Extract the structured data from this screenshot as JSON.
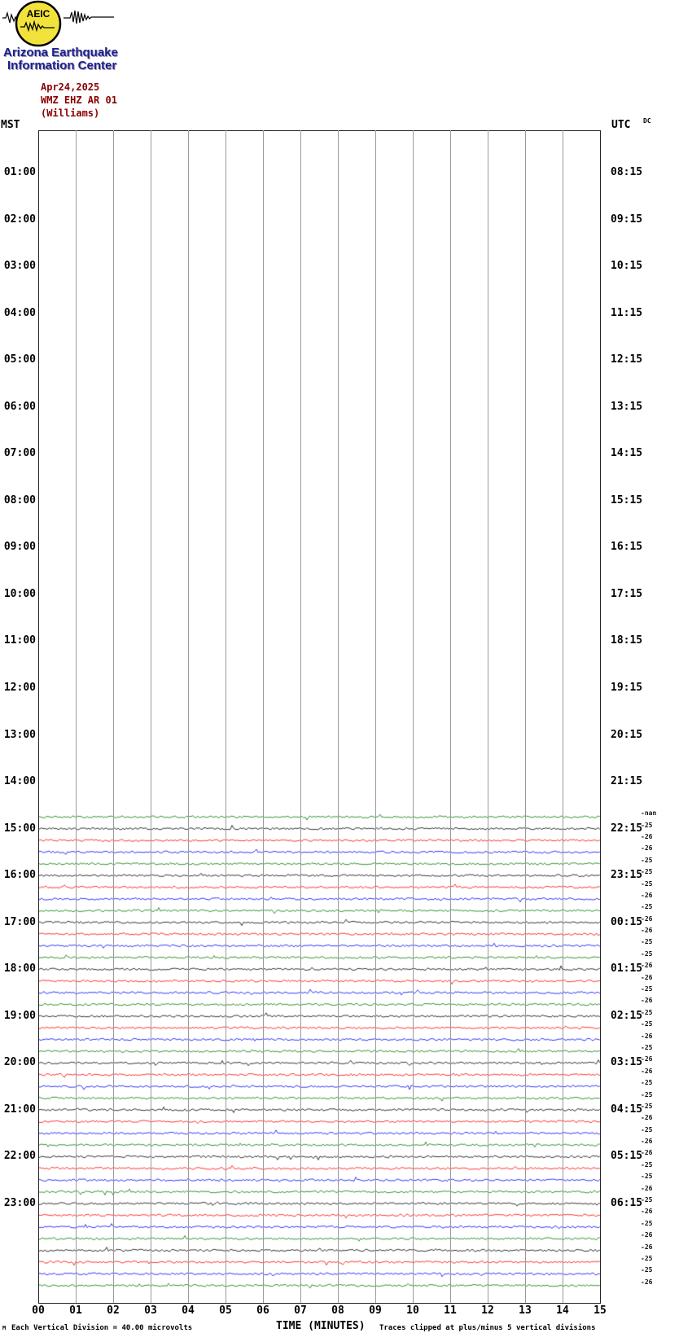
{
  "header": {
    "logo_text": "AEIC",
    "org_line1": "Arizona Earthquake",
    "org_line2": "Information Center",
    "date": "Apr24,2025",
    "station": "WMZ EHZ AR 01",
    "location": "(Williams)"
  },
  "axes": {
    "left_label": "MST",
    "right_label": "UTC",
    "dc_label": "DC",
    "x_title": "TIME (MINUTES)",
    "x_ticks": [
      "00",
      "01",
      "02",
      "03",
      "04",
      "05",
      "06",
      "07",
      "08",
      "09",
      "10",
      "11",
      "12",
      "13",
      "14",
      "15"
    ],
    "hours": [
      {
        "mst": "01:00",
        "utc": "08:15"
      },
      {
        "mst": "02:00",
        "utc": "09:15"
      },
      {
        "mst": "03:00",
        "utc": "10:15"
      },
      {
        "mst": "04:00",
        "utc": "11:15"
      },
      {
        "mst": "05:00",
        "utc": "12:15"
      },
      {
        "mst": "06:00",
        "utc": "13:15"
      },
      {
        "mst": "07:00",
        "utc": "14:15"
      },
      {
        "mst": "08:00",
        "utc": "15:15"
      },
      {
        "mst": "09:00",
        "utc": "16:15"
      },
      {
        "mst": "10:00",
        "utc": "17:15"
      },
      {
        "mst": "11:00",
        "utc": "18:15"
      },
      {
        "mst": "12:00",
        "utc": "19:15"
      },
      {
        "mst": "13:00",
        "utc": "20:15"
      },
      {
        "mst": "14:00",
        "utc": "21:15"
      },
      {
        "mst": "15:00",
        "utc": "22:15"
      },
      {
        "mst": "16:00",
        "utc": "23:15"
      },
      {
        "mst": "17:00",
        "utc": "00:15"
      },
      {
        "mst": "18:00",
        "utc": "01:15"
      },
      {
        "mst": "19:00",
        "utc": "02:15"
      },
      {
        "mst": "20:00",
        "utc": "03:15"
      },
      {
        "mst": "21:00",
        "utc": "04:15"
      },
      {
        "mst": "22:00",
        "utc": "05:15"
      },
      {
        "mst": "23:00",
        "utc": "06:15"
      }
    ]
  },
  "footer": {
    "scale_marker": "M",
    "scale_note": "Each Vertical Division =   40.00 microvolts",
    "clip_note": "Traces clipped at plus/minus 5 vertical divisions"
  },
  "chart_data": {
    "type": "line",
    "title": "Helicorder seismogram, station WMZ EHZ AR 01 (Williams), Apr 24 2025",
    "xlabel": "TIME (MINUTES)",
    "x_range": [
      0,
      15
    ],
    "grid": "vertical-minute-lines",
    "vertical_division_microvolts": 40.0,
    "clip_divisions": 5,
    "note": "No data recorded before 14:45 MST; from 14:45 MST onward each 15-minute segment is a flat noise trace of ~plus/minus 1 division amplitude with no visible seismic events.",
    "colors": {
      "black": "#000000",
      "red": "#ff0000",
      "blue": "#0000ff",
      "green": "#007a00"
    },
    "traces": [
      {
        "time": "14:45",
        "color": "green",
        "dc": "-nan"
      },
      {
        "time": "15:00",
        "color": "black",
        "dc": "-25"
      },
      {
        "time": "15:15",
        "color": "red",
        "dc": "-26"
      },
      {
        "time": "15:30",
        "color": "blue",
        "dc": "-26"
      },
      {
        "time": "15:45",
        "color": "green",
        "dc": "-25"
      },
      {
        "time": "16:00",
        "color": "black",
        "dc": "-25"
      },
      {
        "time": "16:15",
        "color": "red",
        "dc": "-25"
      },
      {
        "time": "16:30",
        "color": "blue",
        "dc": "-26"
      },
      {
        "time": "16:45",
        "color": "green",
        "dc": "-25"
      },
      {
        "time": "17:00",
        "color": "black",
        "dc": "-26"
      },
      {
        "time": "17:15",
        "color": "red",
        "dc": "-26"
      },
      {
        "time": "17:30",
        "color": "blue",
        "dc": "-25"
      },
      {
        "time": "17:45",
        "color": "green",
        "dc": "-25"
      },
      {
        "time": "18:00",
        "color": "black",
        "dc": "-26"
      },
      {
        "time": "18:15",
        "color": "red",
        "dc": "-26"
      },
      {
        "time": "18:30",
        "color": "blue",
        "dc": "-25"
      },
      {
        "time": "18:45",
        "color": "green",
        "dc": "-26"
      },
      {
        "time": "19:00",
        "color": "black",
        "dc": "-25"
      },
      {
        "time": "19:15",
        "color": "red",
        "dc": "-25"
      },
      {
        "time": "19:30",
        "color": "blue",
        "dc": "-26"
      },
      {
        "time": "19:45",
        "color": "green",
        "dc": "-25"
      },
      {
        "time": "20:00",
        "color": "black",
        "dc": "-26"
      },
      {
        "time": "20:15",
        "color": "red",
        "dc": "-26"
      },
      {
        "time": "20:30",
        "color": "blue",
        "dc": "-25"
      },
      {
        "time": "20:45",
        "color": "green",
        "dc": "-25"
      },
      {
        "time": "21:00",
        "color": "black",
        "dc": "-25"
      },
      {
        "time": "21:15",
        "color": "red",
        "dc": "-26"
      },
      {
        "time": "21:30",
        "color": "blue",
        "dc": "-25"
      },
      {
        "time": "21:45",
        "color": "green",
        "dc": "-26"
      },
      {
        "time": "22:00",
        "color": "black",
        "dc": "-26"
      },
      {
        "time": "22:15",
        "color": "red",
        "dc": "-25"
      },
      {
        "time": "22:30",
        "color": "blue",
        "dc": "-25"
      },
      {
        "time": "22:45",
        "color": "green",
        "dc": "-26"
      },
      {
        "time": "23:00",
        "color": "black",
        "dc": "-25"
      },
      {
        "time": "23:15",
        "color": "red",
        "dc": "-26"
      },
      {
        "time": "23:30",
        "color": "blue",
        "dc": "-25"
      },
      {
        "time": "23:45",
        "color": "green",
        "dc": "-26"
      },
      {
        "time": "00:00",
        "color": "black",
        "dc": "-26"
      },
      {
        "time": "00:15",
        "color": "red",
        "dc": "-25"
      },
      {
        "time": "00:30",
        "color": "blue",
        "dc": "-25"
      },
      {
        "time": "00:45",
        "color": "green",
        "dc": "-26"
      }
    ]
  }
}
